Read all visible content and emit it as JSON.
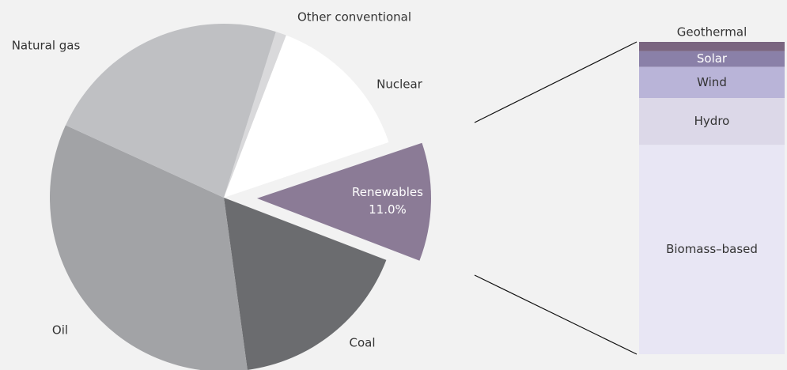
{
  "chart_data": [
    {
      "type": "pie",
      "categories": [
        "Other conventional",
        "Nuclear",
        "Renewables",
        "Coal",
        "Oil",
        "Natural gas"
      ],
      "values": [
        1,
        14,
        11.0,
        17,
        34,
        23
      ],
      "value_labels": [
        null,
        null,
        "11.0%",
        null,
        null,
        null
      ],
      "colors": [
        "#d9d9db",
        "#ffffff",
        "#8b7b96",
        "#6b6c6f",
        "#a2a3a6",
        "#bfc0c3"
      ]
    },
    {
      "type": "stacked-bar",
      "categories": [
        "Geothermal",
        "Solar",
        "Wind",
        "Hydro",
        "Biomass–based"
      ],
      "values": [
        3,
        5,
        10,
        15,
        67
      ],
      "colors": [
        "#7a6580",
        "#8a80a8",
        "#b9b4d8",
        "#dcd8e8",
        "#e8e6f4"
      ]
    }
  ]
}
